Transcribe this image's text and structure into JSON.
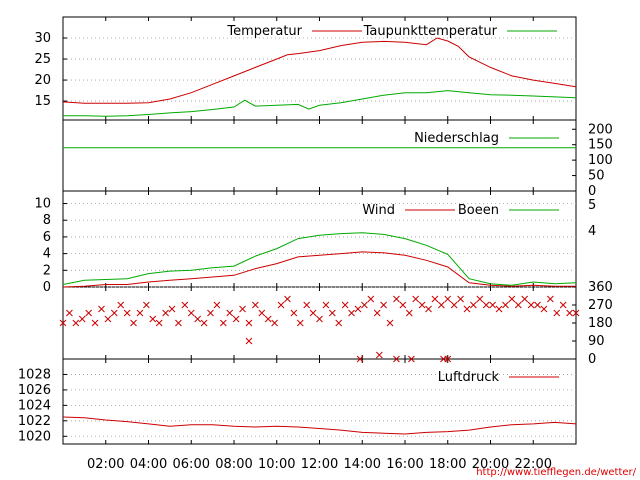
{
  "credit": "http://www.tiefflegen.de/wetter/",
  "x_axis": {
    "ticks": [
      "02:00",
      "04:00",
      "06:00",
      "08:00",
      "10:00",
      "12:00",
      "14:00",
      "16:00",
      "18:00",
      "20:00",
      "22:00"
    ],
    "range_hours": [
      0,
      24
    ]
  },
  "colors": {
    "red": "#cc0000",
    "green": "#00aa00"
  },
  "chart_data": [
    {
      "type": "line",
      "legend_placement": "top",
      "ylim": [
        10.5,
        35
      ],
      "yticks": [
        "15",
        "20",
        "25",
        "30"
      ],
      "grid": true,
      "series": [
        {
          "name": "Temperatur",
          "color": "#cc0000",
          "x": [
            0,
            1,
            2,
            3,
            4,
            5,
            6,
            7,
            8,
            9,
            10,
            10.5,
            11,
            12,
            13,
            14,
            15,
            16,
            17,
            17.5,
            18,
            18.5,
            19,
            20,
            21,
            22,
            23,
            24
          ],
          "y": [
            14.8,
            14.5,
            14.5,
            14.5,
            14.6,
            15.5,
            17.0,
            19.0,
            21.0,
            23.0,
            25.0,
            26.0,
            26.3,
            27.0,
            28.2,
            29.0,
            29.2,
            29.0,
            28.4,
            30.0,
            29.3,
            28.0,
            25.5,
            23.0,
            21.0,
            20.0,
            19.2,
            18.4
          ]
        },
        {
          "name": "Taupunkttemperatur",
          "color": "#00aa00",
          "x": [
            0,
            1,
            2,
            3,
            4,
            5,
            6,
            7,
            8,
            8.5,
            9,
            10,
            11,
            11.5,
            12,
            13,
            14,
            15,
            16,
            17,
            18,
            19,
            20,
            21,
            22,
            23,
            24
          ],
          "y": [
            11.5,
            11.5,
            11.4,
            11.5,
            11.8,
            12.2,
            12.5,
            13.0,
            13.6,
            15.2,
            13.8,
            14.0,
            14.2,
            13.1,
            14.0,
            14.6,
            15.5,
            16.4,
            17.0,
            17.0,
            17.5,
            17.0,
            16.5,
            16.4,
            16.2,
            16.0,
            15.8
          ]
        }
      ]
    },
    {
      "type": "line",
      "legend_placement": "top",
      "ylim": [
        0,
        230
      ],
      "yticks": [
        "0",
        "50",
        "100",
        "150",
        "200"
      ],
      "series": [
        {
          "name": "Niederschlag",
          "color": "#00aa00",
          "x": [
            0,
            24
          ],
          "y": [
            140,
            140
          ]
        }
      ]
    },
    {
      "type": "line",
      "legend_placement": "top",
      "ylim": [
        0,
        11.5
      ],
      "yticks": [
        "0",
        "2",
        "4",
        "6",
        "8",
        "10"
      ],
      "yticks_right": [
        "4",
        "5"
      ],
      "grid": true,
      "series": [
        {
          "name": "Wind",
          "color": "#cc0000",
          "x": [
            0,
            1,
            2,
            3,
            4,
            5,
            6,
            7,
            8,
            9,
            10,
            11,
            12,
            13,
            14,
            15,
            16,
            17,
            18,
            19,
            20,
            21,
            22,
            23,
            24
          ],
          "y": [
            0,
            0.1,
            0.3,
            0.3,
            0.6,
            0.8,
            1.0,
            1.2,
            1.4,
            2.2,
            2.8,
            3.6,
            3.8,
            4.0,
            4.2,
            4.1,
            3.8,
            3.2,
            2.4,
            0.5,
            0.2,
            0.1,
            0.2,
            0.1,
            0.1
          ]
        },
        {
          "name": "Boeen",
          "color": "#00aa00",
          "x": [
            0,
            1,
            2,
            3,
            4,
            5,
            6,
            7,
            8,
            9,
            10,
            11,
            12,
            13,
            14,
            15,
            16,
            17,
            18,
            19,
            20,
            21,
            22,
            23,
            24
          ],
          "y": [
            0.3,
            0.8,
            0.9,
            1.0,
            1.6,
            1.9,
            2.0,
            2.3,
            2.5,
            3.7,
            4.6,
            5.8,
            6.2,
            6.4,
            6.5,
            6.3,
            5.8,
            5.0,
            3.9,
            1.0,
            0.4,
            0.2,
            0.6,
            0.4,
            0.5
          ]
        }
      ]
    },
    {
      "type": "scatter",
      "ylim": [
        0,
        360
      ],
      "yticks": [
        "0",
        "90",
        "180",
        "270",
        "360"
      ],
      "series": [
        {
          "name": "",
          "color": "#cc0000",
          "x": [
            0,
            0.3,
            0.6,
            0.9,
            1.2,
            1.5,
            1.8,
            2.1,
            2.4,
            2.7,
            3,
            3.3,
            3.6,
            3.9,
            4.2,
            4.5,
            4.8,
            5.1,
            5.4,
            5.7,
            6,
            6.3,
            6.6,
            6.9,
            7.2,
            7.5,
            7.8,
            8.1,
            8.4,
            8.7,
            9,
            9.3,
            9.6,
            9.9,
            10.2,
            10.5,
            10.8,
            11.1,
            11.4,
            11.7,
            12,
            12.3,
            12.6,
            12.9,
            13.2,
            13.5,
            13.8,
            14.1,
            14.4,
            14.7,
            15,
            15.3,
            15.6,
            15.9,
            16.2,
            16.5,
            16.8,
            17.1,
            17.4,
            17.7,
            18,
            18.3,
            18.6,
            18.9,
            19.2,
            19.5,
            19.8,
            20.1,
            20.4,
            20.7,
            21,
            21.3,
            21.6,
            21.9,
            22.2,
            22.5,
            22.8,
            23.1,
            23.4,
            23.7,
            24,
            8.7,
            13.9,
            14.8,
            15.6,
            16.3,
            17.8,
            18
          ],
          "y": [
            180,
            230,
            180,
            200,
            230,
            180,
            250,
            200,
            230,
            270,
            230,
            180,
            230,
            270,
            200,
            180,
            230,
            250,
            180,
            270,
            230,
            200,
            180,
            230,
            270,
            180,
            230,
            200,
            250,
            180,
            270,
            230,
            200,
            180,
            270,
            300,
            230,
            180,
            270,
            230,
            200,
            270,
            230,
            180,
            270,
            230,
            250,
            270,
            300,
            230,
            270,
            180,
            300,
            270,
            230,
            300,
            270,
            250,
            300,
            270,
            300,
            270,
            300,
            250,
            270,
            300,
            270,
            270,
            250,
            270,
            300,
            270,
            300,
            270,
            270,
            250,
            300,
            230,
            270,
            230,
            230,
            90,
            0,
            20,
            0,
            0,
            0,
            0
          ]
        }
      ]
    },
    {
      "type": "line",
      "legend_placement": "top",
      "ylim": [
        1019,
        1030
      ],
      "yticks": [
        "1020",
        "1022",
        "1024",
        "1026",
        "1028"
      ],
      "grid": true,
      "series": [
        {
          "name": "Luftdruck",
          "color": "#cc0000",
          "x": [
            0,
            1,
            2,
            3,
            4,
            5,
            6,
            7,
            8,
            9,
            10,
            11,
            12,
            13,
            14,
            15,
            16,
            17,
            18,
            19,
            20,
            21,
            22,
            23,
            24
          ],
          "y": [
            1022.5,
            1022.4,
            1022.1,
            1021.9,
            1021.6,
            1021.3,
            1021.5,
            1021.5,
            1021.3,
            1021.2,
            1021.3,
            1021.2,
            1021.0,
            1020.8,
            1020.5,
            1020.4,
            1020.3,
            1020.5,
            1020.6,
            1020.8,
            1021.2,
            1021.5,
            1021.6,
            1021.8,
            1021.6
          ]
        }
      ]
    }
  ]
}
